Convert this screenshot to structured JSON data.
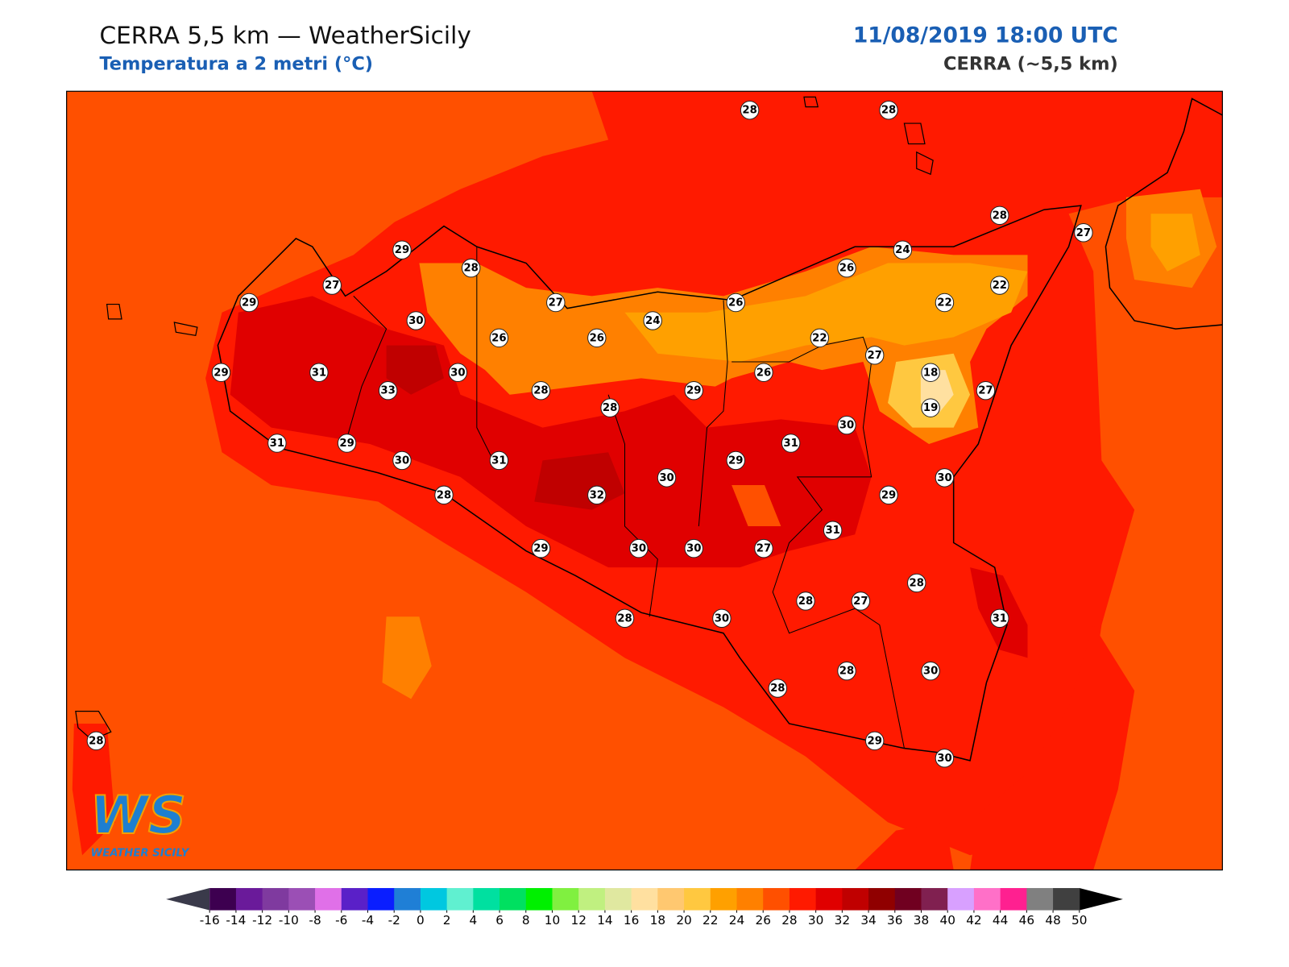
{
  "header": {
    "title": "CERRA 5,5 km — WeatherSicily",
    "subtitle": "Temperatura a 2 metri (°C)",
    "datetime": "11/08/2019 18:00 UTC",
    "model": "CERRA (~5,5 km)"
  },
  "map": {
    "stations": [
      28,
      28,
      28,
      27,
      29,
      28,
      24,
      26,
      27,
      29,
      27,
      26,
      22,
      22,
      30,
      24,
      26,
      26,
      22,
      27,
      29,
      31,
      30,
      33,
      28,
      29,
      26,
      18,
      27,
      28,
      19,
      30,
      31,
      29,
      31,
      30,
      31,
      29,
      30,
      30,
      28,
      32,
      29,
      31,
      29,
      30,
      30,
      27,
      28,
      28,
      27,
      28,
      30,
      31,
      28,
      30,
      28,
      29,
      30,
      28
    ]
  },
  "colorbar": {
    "ticks": [
      -16,
      -14,
      -12,
      -10,
      -8,
      -6,
      -4,
      -2,
      0,
      2,
      4,
      6,
      8,
      10,
      12,
      14,
      16,
      18,
      20,
      22,
      24,
      26,
      28,
      30,
      32,
      34,
      36,
      38,
      40,
      42,
      44,
      46,
      48,
      50
    ],
    "colors": [
      "#3d0050",
      "#6a1a9a",
      "#7f3a9f",
      "#9b4fb5",
      "#e070e8",
      "#5a20c8",
      "#0a1eff",
      "#1f7fd6",
      "#00c8e0",
      "#60f0d0",
      "#00e0a0",
      "#00e060",
      "#00f000",
      "#80f040",
      "#c0f080",
      "#e0e8a0",
      "#ffe0a0",
      "#ffc870",
      "#ffc840",
      "#ffa000",
      "#ff8000",
      "#ff5000",
      "#ff1a00",
      "#e00000",
      "#c00000",
      "#900000",
      "#700020",
      "#802050",
      "#d8a0ff",
      "#ff70c8",
      "#ff2090",
      "#808080",
      "#404040"
    ],
    "under_color": "#3a3a4a",
    "over_color": "#000000"
  },
  "logo": {
    "mark": "WS",
    "text": "WEATHER SICILY"
  }
}
